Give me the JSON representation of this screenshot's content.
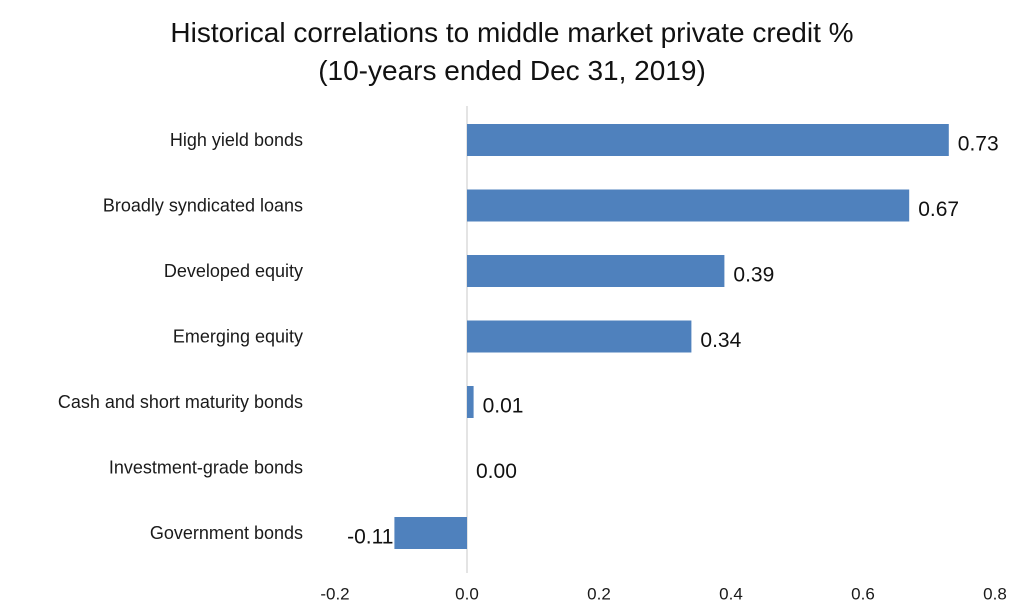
{
  "chart_data": {
    "type": "bar",
    "orientation": "horizontal",
    "title": "Historical correlations to middle market private credit %",
    "subtitle": "(10-years ended Dec 31, 2019)",
    "categories": [
      "High yield bonds",
      "Broadly syndicated loans",
      "Developed equity",
      "Emerging equity",
      "Cash and short maturity bonds",
      "Investment-grade bonds",
      "Government bonds"
    ],
    "values": [
      0.73,
      0.67,
      0.39,
      0.34,
      0.01,
      0.0,
      -0.11
    ],
    "data_labels": [
      "0.73",
      "0.67",
      "0.39",
      "0.34",
      "0.01",
      "0.00",
      "-0.11"
    ],
    "xlim": [
      -0.2,
      0.8
    ],
    "xticks": [
      -0.2,
      0.0,
      0.2,
      0.4,
      0.6,
      0.8
    ],
    "xtick_labels": [
      "-0.2",
      "0.0",
      "0.2",
      "0.4",
      "0.6",
      "0.8"
    ],
    "bar_color": "#4f81bd",
    "grid": false,
    "legend": "none"
  }
}
